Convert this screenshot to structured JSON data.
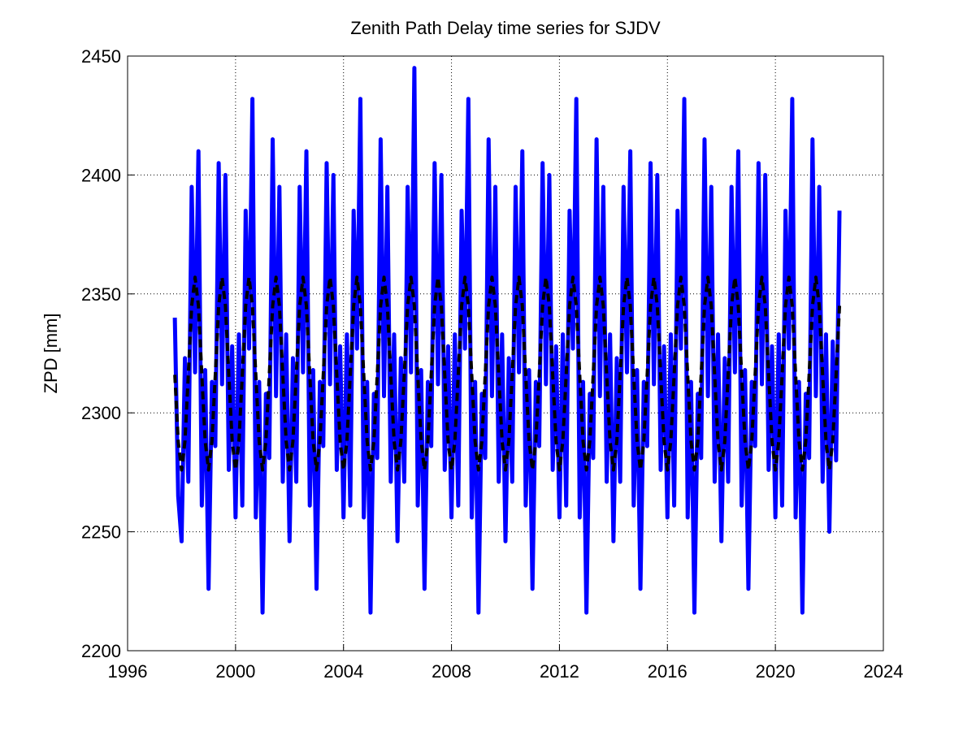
{
  "chart_data": {
    "type": "line",
    "title": "Zenith Path Delay time series for SJDV",
    "y_label": "ZPD [mm]",
    "xlim": [
      1996,
      2024
    ],
    "xticks": [
      1996,
      2000,
      2004,
      2008,
      2012,
      2016,
      2020,
      2024
    ],
    "ylim": [
      2200,
      2450
    ],
    "yticks": [
      2200,
      2250,
      2300,
      2350,
      2400,
      2450
    ],
    "grid": true,
    "x": [
      1997.75,
      1997.875,
      1998,
      1998.125,
      1998.25,
      1998.375,
      1998.5,
      1998.625,
      1998.75,
      1998.875,
      1999,
      1999.125,
      1999.25,
      1999.375,
      1999.5,
      1999.625,
      1999.75,
      1999.875,
      2000,
      2000.125,
      2000.25,
      2000.375,
      2000.5,
      2000.625,
      2000.75,
      2000.875,
      2001,
      2001.125,
      2001.25,
      2001.375,
      2001.5,
      2001.625,
      2001.75,
      2001.875,
      2002,
      2002.125,
      2002.25,
      2002.375,
      2002.5,
      2002.625,
      2002.75,
      2002.875,
      2003,
      2003.125,
      2003.25,
      2003.375,
      2003.5,
      2003.625,
      2003.75,
      2003.875,
      2004,
      2004.125,
      2004.25,
      2004.375,
      2004.5,
      2004.625,
      2004.75,
      2004.875,
      2005,
      2005.125,
      2005.25,
      2005.375,
      2005.5,
      2005.625,
      2005.75,
      2005.875,
      2006,
      2006.125,
      2006.25,
      2006.375,
      2006.5,
      2006.625,
      2006.75,
      2006.875,
      2007,
      2007.125,
      2007.25,
      2007.375,
      2007.5,
      2007.625,
      2007.75,
      2007.875,
      2008,
      2008.125,
      2008.25,
      2008.375,
      2008.5,
      2008.625,
      2008.75,
      2008.875,
      2009,
      2009.125,
      2009.25,
      2009.375,
      2009.5,
      2009.625,
      2009.75,
      2009.875,
      2010,
      2010.125,
      2010.25,
      2010.375,
      2010.5,
      2010.625,
      2010.75,
      2010.875,
      2011,
      2011.125,
      2011.25,
      2011.375,
      2011.5,
      2011.625,
      2011.75,
      2011.875,
      2012,
      2012.125,
      2012.25,
      2012.375,
      2012.5,
      2012.625,
      2012.75,
      2012.875,
      2013,
      2013.125,
      2013.25,
      2013.375,
      2013.5,
      2013.625,
      2013.75,
      2013.875,
      2014,
      2014.125,
      2014.25,
      2014.375,
      2014.5,
      2014.625,
      2014.75,
      2014.875,
      2015,
      2015.125,
      2015.25,
      2015.375,
      2015.5,
      2015.625,
      2015.75,
      2015.875,
      2016,
      2016.125,
      2016.25,
      2016.375,
      2016.5,
      2016.625,
      2016.75,
      2016.875,
      2017,
      2017.125,
      2017.25,
      2017.375,
      2017.5,
      2017.625,
      2017.75,
      2017.875,
      2018,
      2018.125,
      2018.25,
      2018.375,
      2018.5,
      2018.625,
      2018.75,
      2018.875,
      2019,
      2019.125,
      2019.25,
      2019.375,
      2019.5,
      2019.625,
      2019.75,
      2019.875,
      2020,
      2020.125,
      2020.25,
      2020.375,
      2020.5,
      2020.625,
      2020.75,
      2020.875,
      2021,
      2021.125,
      2021.25,
      2021.375,
      2021.5,
      2021.625,
      2021.75,
      2021.875,
      2022,
      2022.125,
      2022.25,
      2022.375
    ],
    "series": [
      {
        "color": "#0000ff",
        "style": "solid",
        "width": 5,
        "values": [
          2340,
          2265,
          2246,
          2323,
          2271,
          2395,
          2317,
          2410,
          2261,
          2318,
          2226,
          2313,
          2286,
          2405,
          2312,
          2400,
          2276,
          2328,
          2256,
          2333,
          2261,
          2385,
          2327,
          2432,
          2256,
          2313,
          2216,
          2308,
          2281,
          2415,
          2307,
          2395,
          2271,
          2333,
          2246,
          2323,
          2271,
          2395,
          2317,
          2410,
          2261,
          2318,
          2226,
          2313,
          2286,
          2405,
          2312,
          2400,
          2276,
          2328,
          2256,
          2333,
          2261,
          2385,
          2327,
          2432,
          2256,
          2313,
          2216,
          2308,
          2281,
          2415,
          2307,
          2395,
          2271,
          2333,
          2246,
          2323,
          2271,
          2395,
          2317,
          2445,
          2261,
          2318,
          2226,
          2313,
          2286,
          2405,
          2312,
          2400,
          2276,
          2328,
          2256,
          2333,
          2261,
          2385,
          2327,
          2432,
          2256,
          2313,
          2216,
          2308,
          2281,
          2415,
          2307,
          2395,
          2271,
          2333,
          2246,
          2323,
          2271,
          2395,
          2317,
          2410,
          2261,
          2318,
          2226,
          2313,
          2286,
          2405,
          2312,
          2400,
          2276,
          2328,
          2256,
          2333,
          2261,
          2385,
          2327,
          2432,
          2256,
          2313,
          2216,
          2308,
          2281,
          2415,
          2307,
          2395,
          2271,
          2333,
          2246,
          2323,
          2271,
          2395,
          2317,
          2410,
          2261,
          2318,
          2226,
          2313,
          2286,
          2405,
          2312,
          2400,
          2276,
          2328,
          2256,
          2333,
          2261,
          2385,
          2327,
          2432,
          2256,
          2313,
          2216,
          2308,
          2281,
          2415,
          2307,
          2395,
          2271,
          2333,
          2246,
          2323,
          2271,
          2395,
          2317,
          2410,
          2261,
          2318,
          2226,
          2313,
          2286,
          2405,
          2312,
          2400,
          2276,
          2328,
          2256,
          2333,
          2261,
          2385,
          2327,
          2432,
          2256,
          2313,
          2216,
          2308,
          2281,
          2415,
          2307,
          2395,
          2271,
          2333,
          2250,
          2330,
          2280,
          2385
        ]
      },
      {
        "color": "#000000",
        "style": "dashed",
        "width": 4,
        "values": [
          2316,
          2288,
          2276,
          2288,
          2316,
          2345,
          2357,
          2345,
          2316,
          2288,
          2276,
          2288,
          2316,
          2345,
          2357,
          2345,
          2316,
          2288,
          2276,
          2288,
          2316,
          2345,
          2357,
          2345,
          2316,
          2288,
          2276,
          2288,
          2316,
          2345,
          2357,
          2345,
          2316,
          2288,
          2276,
          2288,
          2316,
          2345,
          2357,
          2345,
          2316,
          2288,
          2276,
          2288,
          2316,
          2345,
          2357,
          2345,
          2316,
          2288,
          2276,
          2288,
          2316,
          2345,
          2357,
          2345,
          2316,
          2288,
          2276,
          2288,
          2316,
          2345,
          2357,
          2345,
          2316,
          2288,
          2276,
          2288,
          2316,
          2345,
          2357,
          2345,
          2316,
          2288,
          2276,
          2288,
          2316,
          2345,
          2357,
          2345,
          2316,
          2288,
          2276,
          2288,
          2316,
          2345,
          2357,
          2345,
          2316,
          2288,
          2276,
          2288,
          2316,
          2345,
          2357,
          2345,
          2316,
          2288,
          2276,
          2288,
          2316,
          2345,
          2357,
          2345,
          2316,
          2288,
          2276,
          2288,
          2316,
          2345,
          2357,
          2345,
          2316,
          2288,
          2276,
          2288,
          2316,
          2345,
          2357,
          2345,
          2316,
          2288,
          2276,
          2288,
          2316,
          2345,
          2357,
          2345,
          2316,
          2288,
          2276,
          2288,
          2316,
          2345,
          2357,
          2345,
          2316,
          2288,
          2276,
          2288,
          2316,
          2345,
          2357,
          2345,
          2316,
          2288,
          2276,
          2288,
          2316,
          2345,
          2357,
          2345,
          2316,
          2288,
          2276,
          2288,
          2316,
          2345,
          2357,
          2345,
          2316,
          2288,
          2276,
          2288,
          2316,
          2345,
          2357,
          2345,
          2316,
          2288,
          2276,
          2288,
          2316,
          2345,
          2357,
          2345,
          2316,
          2288,
          2276,
          2288,
          2316,
          2345,
          2357,
          2345,
          2316,
          2288,
          2276,
          2288,
          2316,
          2345,
          2357,
          2345,
          2316,
          2288,
          2276,
          2288,
          2316,
          2345
        ]
      }
    ]
  }
}
